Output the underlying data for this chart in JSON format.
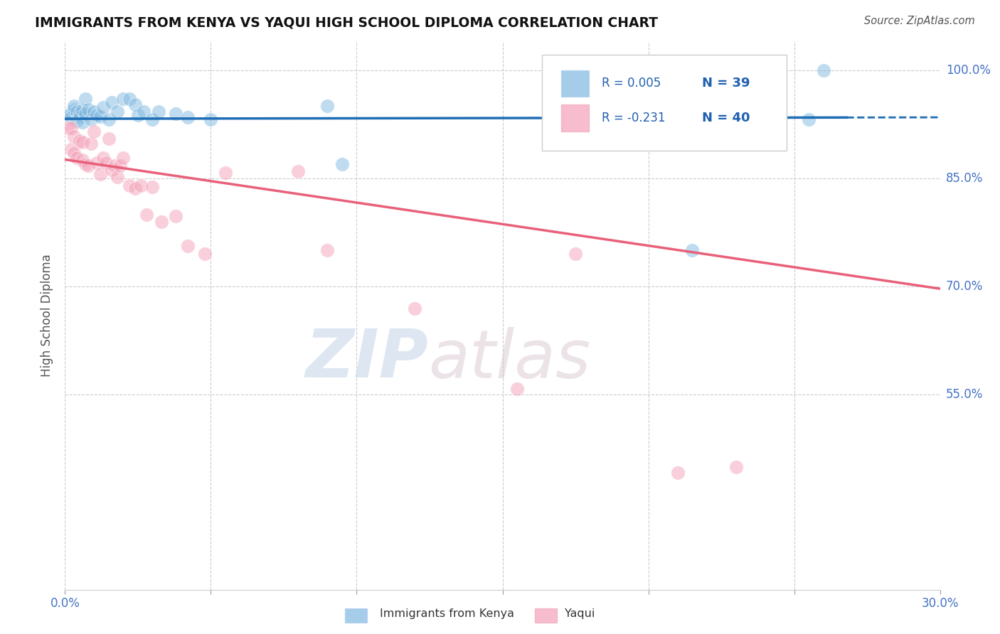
{
  "title": "IMMIGRANTS FROM KENYA VS YAQUI HIGH SCHOOL DIPLOMA CORRELATION CHART",
  "source": "Source: ZipAtlas.com",
  "ylabel": "High School Diploma",
  "xlim": [
    0.0,
    0.3
  ],
  "ylim": [
    0.28,
    1.04
  ],
  "xticks": [
    0.0,
    0.05,
    0.1,
    0.15,
    0.2,
    0.25,
    0.3
  ],
  "xtick_labels": [
    "0.0%",
    "",
    "",
    "",
    "",
    "",
    "30.0%"
  ],
  "ytick_values": [
    1.0,
    0.85,
    0.7,
    0.55
  ],
  "ytick_labels": [
    "100.0%",
    "85.0%",
    "70.0%",
    "55.0%"
  ],
  "blue_color": "#7fb8e0",
  "blue_line_color": "#1f6eb5",
  "pink_color": "#f4a0b8",
  "pink_line_color": "#e8607a",
  "legend_r1": "R = 0.005",
  "legend_n1": "N = 39",
  "legend_r2": "R = -0.231",
  "legend_n2": "N = 40",
  "watermark_zip": "ZIP",
  "watermark_atlas": "atlas",
  "background_color": "#ffffff",
  "grid_color": "#cccccc",
  "blue_scatter_x": [
    0.001,
    0.002,
    0.002,
    0.003,
    0.003,
    0.004,
    0.004,
    0.005,
    0.005,
    0.006,
    0.006,
    0.007,
    0.007,
    0.008,
    0.009,
    0.01,
    0.011,
    0.012,
    0.013,
    0.015,
    0.016,
    0.018,
    0.02,
    0.022,
    0.024,
    0.025,
    0.027,
    0.03,
    0.032,
    0.038,
    0.042,
    0.05,
    0.09,
    0.095,
    0.17,
    0.2,
    0.215,
    0.255,
    0.26
  ],
  "blue_scatter_y": [
    0.938,
    0.94,
    0.935,
    0.945,
    0.95,
    0.942,
    0.93,
    0.94,
    0.935,
    0.944,
    0.928,
    0.96,
    0.94,
    0.945,
    0.932,
    0.942,
    0.938,
    0.936,
    0.948,
    0.932,
    0.955,
    0.942,
    0.96,
    0.96,
    0.952,
    0.938,
    0.942,
    0.932,
    0.942,
    0.94,
    0.935,
    0.932,
    0.95,
    0.87,
    0.935,
    0.935,
    0.75,
    0.932,
    1.0
  ],
  "pink_scatter_x": [
    0.001,
    0.002,
    0.002,
    0.003,
    0.003,
    0.004,
    0.005,
    0.006,
    0.006,
    0.007,
    0.008,
    0.009,
    0.01,
    0.011,
    0.012,
    0.013,
    0.014,
    0.015,
    0.016,
    0.017,
    0.018,
    0.019,
    0.02,
    0.022,
    0.024,
    0.026,
    0.028,
    0.03,
    0.033,
    0.038,
    0.042,
    0.048,
    0.055,
    0.08,
    0.09,
    0.12,
    0.155,
    0.175,
    0.21,
    0.23
  ],
  "pink_scatter_y": [
    0.92,
    0.92,
    0.89,
    0.908,
    0.885,
    0.878,
    0.902,
    0.9,
    0.875,
    0.87,
    0.868,
    0.898,
    0.915,
    0.872,
    0.856,
    0.878,
    0.872,
    0.905,
    0.862,
    0.868,
    0.852,
    0.868,
    0.878,
    0.84,
    0.836,
    0.84,
    0.8,
    0.838,
    0.79,
    0.798,
    0.756,
    0.745,
    0.858,
    0.86,
    0.75,
    0.67,
    0.558,
    0.745,
    0.442,
    0.45
  ],
  "blue_line_y0": 0.9325,
  "blue_line_y1": 0.9345,
  "pink_line_y0": 0.876,
  "pink_line_y1": 0.697
}
